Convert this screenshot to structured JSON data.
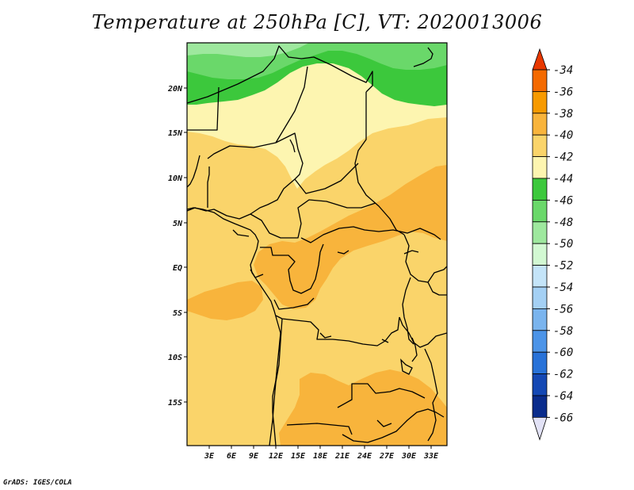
{
  "title": "Temperature at 250hPa [C], VT: 2020013006",
  "credit": "GrADS: IGES/COLA",
  "lat_ticks": [
    "20N",
    "15N",
    "10N",
    "5N",
    "EQ",
    "5S",
    "10S",
    "15S"
  ],
  "lon_ticks": [
    "3E",
    "6E",
    "9E",
    "12E",
    "15E",
    "18E",
    "21E",
    "24E",
    "27E",
    "30E",
    "33E"
  ],
  "colorbar": {
    "labels": [
      "-34",
      "-36",
      "-38",
      "-40",
      "-42",
      "-44",
      "-46",
      "-48",
      "-50",
      "-52",
      "-54",
      "-56",
      "-58",
      "-60",
      "-62",
      "-64",
      "-66"
    ],
    "colors": [
      "#e83800",
      "#f46a00",
      "#f79a00",
      "#f8b43c",
      "#fad46a",
      "#fdf5b0",
      "#3cc83c",
      "#6ad86a",
      "#9ee89e",
      "#d2f8d2",
      "#c4e4f8",
      "#a4d0f4",
      "#7ab4ee",
      "#4c94e8",
      "#2872d8",
      "#1448b4",
      "#0a2c8c",
      "#081c62"
    ],
    "top_triangle_color": "#e83800",
    "bottom_triangle_color": "#e2e2f6"
  },
  "field_colors": {
    "level_40": "#fad46a",
    "level_38": "#f8b43c",
    "level_42": "#fdf5b0",
    "level_44": "#3cc83c",
    "level_46": "#6ad86a",
    "level_48": "#9ee89e"
  }
}
